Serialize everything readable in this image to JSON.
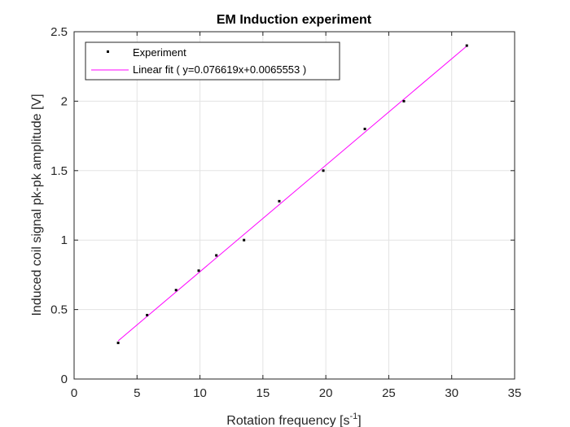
{
  "chart_data": {
    "type": "scatter",
    "title": "EM Induction experiment",
    "xlabel_main": "Rotation frequency [s",
    "xlabel_sup": "-1",
    "xlabel_close": "]",
    "ylabel": "Induced coil signal pk-pk amplitude [V]",
    "xlim": [
      0,
      35
    ],
    "ylim": [
      0,
      2.5
    ],
    "xticks": [
      0,
      5,
      10,
      15,
      20,
      25,
      30,
      35
    ],
    "yticks": [
      0,
      0.5,
      1,
      1.5,
      2,
      2.5
    ],
    "xtick_labels": [
      "0",
      "5",
      "10",
      "15",
      "20",
      "25",
      "30",
      "35"
    ],
    "ytick_labels": [
      "0",
      "0.5",
      "1",
      "1.5",
      "2",
      "2.5"
    ],
    "grid": true,
    "legend_position": "top-left",
    "series": [
      {
        "name": "Experiment",
        "kind": "points",
        "color": "#000000",
        "x": [
          3.5,
          5.8,
          8.1,
          9.9,
          11.3,
          13.5,
          16.3,
          19.8,
          23.1,
          26.2,
          31.2
        ],
        "y": [
          0.26,
          0.46,
          0.64,
          0.78,
          0.89,
          1.0,
          1.28,
          1.5,
          1.8,
          2.0,
          2.4
        ]
      },
      {
        "name": "Linear fit ( y=0.076619x+0.0065553 )",
        "kind": "line",
        "color": "#ff00ff",
        "slope": 0.076619,
        "intercept": 0.0065553,
        "x_range": [
          3.5,
          31.2
        ]
      }
    ]
  }
}
